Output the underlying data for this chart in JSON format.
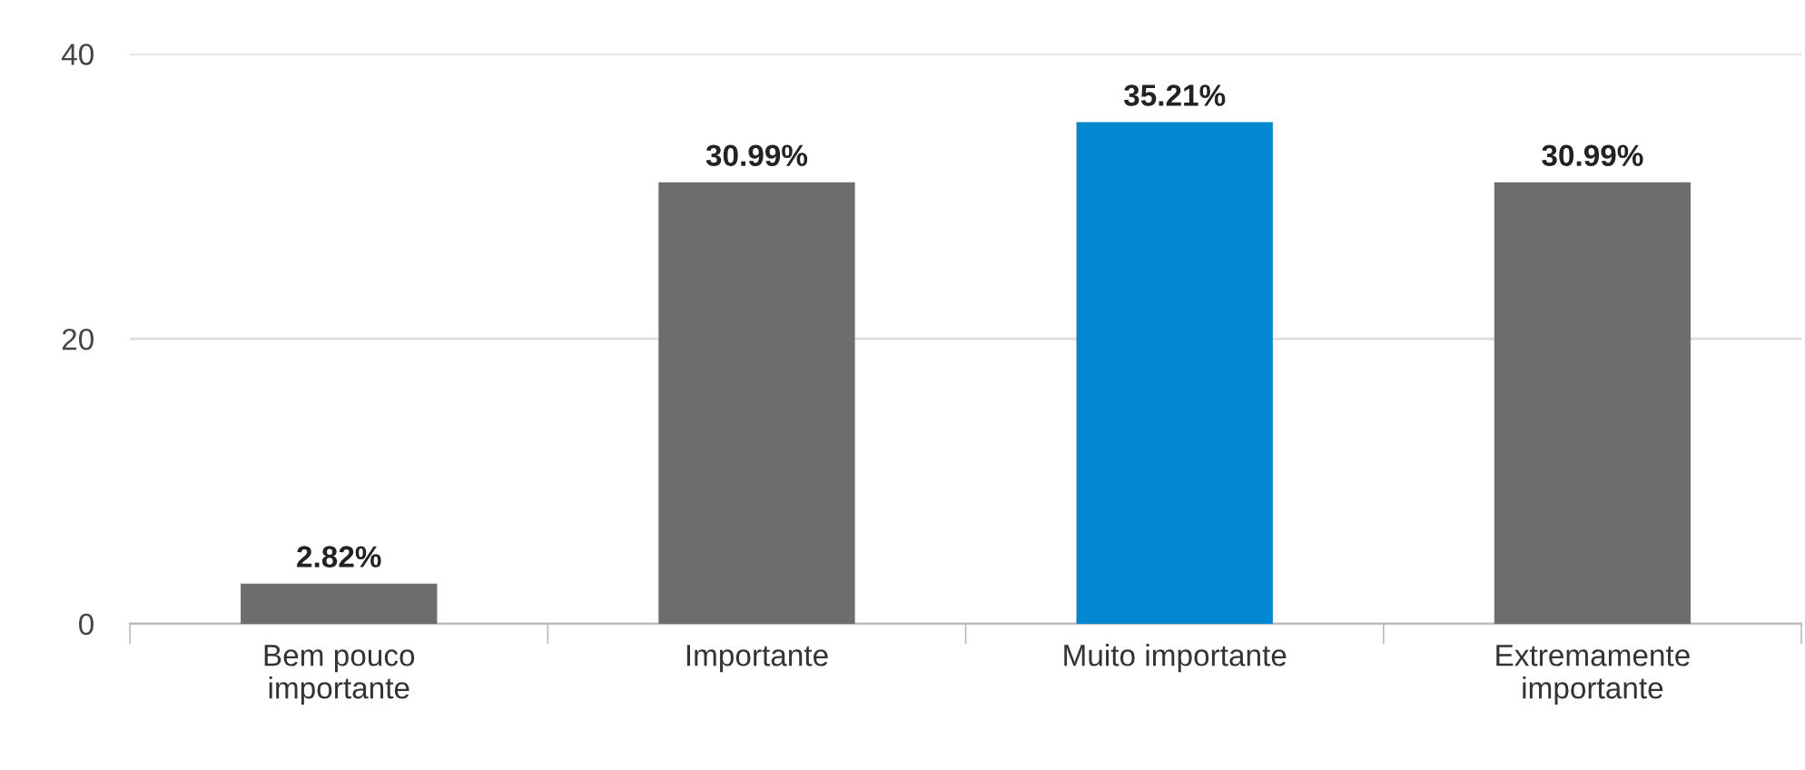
{
  "chart_data": {
    "type": "bar",
    "categories": [
      "Bem pouco\nimportante",
      "Importante",
      "Muito importante",
      "Extremamente\nimportante"
    ],
    "values": [
      2.82,
      30.99,
      35.21,
      30.99
    ],
    "colors": [
      "#6d6d6d",
      "#6d6d6d",
      "#0288d1",
      "#6d6d6d"
    ],
    "value_labels": [
      "2.82%",
      "30.99%",
      "35.21%",
      "30.99%"
    ],
    "ylim": [
      0,
      40
    ],
    "yticks": [
      0,
      20,
      40
    ],
    "grid": "y",
    "legend": false
  }
}
